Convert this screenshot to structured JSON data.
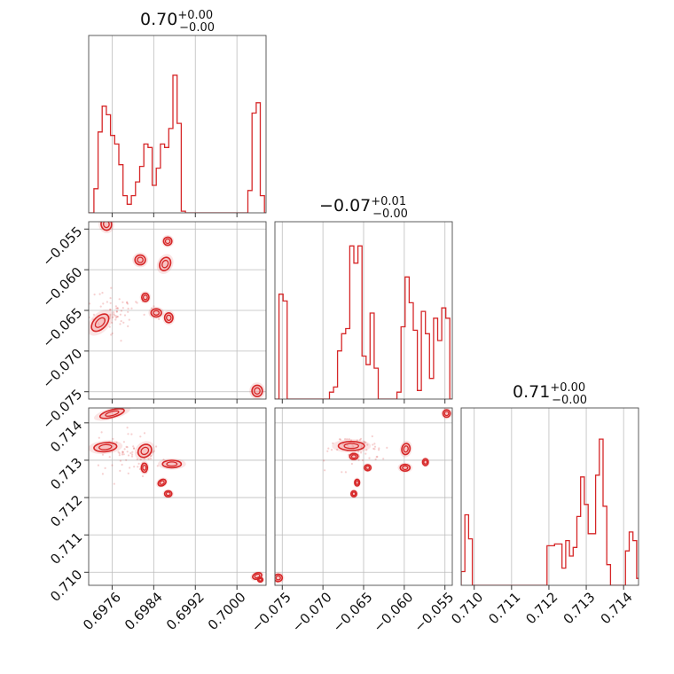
{
  "chart_data": {
    "type": "corner",
    "color": "#d62728",
    "grid": true,
    "parameters": [
      {
        "title_value": "0.70",
        "title_plus": "+0.00",
        "title_minus": "−0.00",
        "range": [
          0.69715,
          0.70056
        ],
        "ticks": [
          0.6976,
          0.6984,
          0.6992,
          0.7
        ],
        "tick_labels": [
          "0.6976",
          "0.6984",
          "0.6992",
          "0.7000"
        ],
        "hist": [
          [
            0.69715,
            0.0
          ],
          [
            0.69725,
            0.14
          ],
          [
            0.69733,
            0.47
          ],
          [
            0.69741,
            0.62
          ],
          [
            0.69749,
            0.57
          ],
          [
            0.69757,
            0.45
          ],
          [
            0.69765,
            0.4
          ],
          [
            0.69773,
            0.28
          ],
          [
            0.69781,
            0.1
          ],
          [
            0.69789,
            0.05
          ],
          [
            0.69797,
            0.1
          ],
          [
            0.69805,
            0.18
          ],
          [
            0.69813,
            0.27
          ],
          [
            0.69821,
            0.4
          ],
          [
            0.69829,
            0.38
          ],
          [
            0.69837,
            0.16
          ],
          [
            0.69845,
            0.26
          ],
          [
            0.69853,
            0.4
          ],
          [
            0.69861,
            0.38
          ],
          [
            0.69869,
            0.49
          ],
          [
            0.69877,
            0.8
          ],
          [
            0.69885,
            0.52
          ],
          [
            0.69893,
            0.01
          ],
          [
            0.69901,
            0.0
          ],
          [
            0.6999,
            0.0
          ],
          [
            0.70021,
            0.13
          ],
          [
            0.70029,
            0.58
          ],
          [
            0.70037,
            0.64
          ],
          [
            0.70045,
            0.1
          ],
          [
            0.70053,
            0.0
          ]
        ]
      },
      {
        "title_value": "−0.07",
        "title_plus": "+0.01",
        "title_minus": "−0.00",
        "range": [
          -0.0759,
          -0.0541
        ],
        "ticks": [
          -0.075,
          -0.07,
          -0.065,
          -0.06,
          -0.055
        ],
        "tick_labels": [
          "−0.075",
          "−0.070",
          "−0.065",
          "−0.060",
          "−0.055"
        ],
        "hist": [
          [
            -0.0759,
            0.0
          ],
          [
            -0.0754,
            0.61
          ],
          [
            -0.0749,
            0.57
          ],
          [
            -0.0744,
            0.0
          ],
          [
            -0.07,
            0.0
          ],
          [
            -0.0692,
            0.04
          ],
          [
            -0.0687,
            0.07
          ],
          [
            -0.0682,
            0.28
          ],
          [
            -0.0677,
            0.38
          ],
          [
            -0.0672,
            0.41
          ],
          [
            -0.0667,
            0.89
          ],
          [
            -0.0662,
            0.79
          ],
          [
            -0.0657,
            0.89
          ],
          [
            -0.0652,
            0.25
          ],
          [
            -0.0647,
            0.2
          ],
          [
            -0.0642,
            0.5
          ],
          [
            -0.0637,
            0.18
          ],
          [
            -0.0632,
            0.0
          ],
          [
            -0.0614,
            0.0
          ],
          [
            -0.0609,
            0.04
          ],
          [
            -0.0604,
            0.42
          ],
          [
            -0.0599,
            0.71
          ],
          [
            -0.0594,
            0.56
          ],
          [
            -0.0589,
            0.4
          ],
          [
            -0.0584,
            0.05
          ],
          [
            -0.0579,
            0.51
          ],
          [
            -0.0574,
            0.38
          ],
          [
            -0.0569,
            0.12
          ],
          [
            -0.0564,
            0.47
          ],
          [
            -0.0559,
            0.34
          ],
          [
            -0.0554,
            0.53
          ],
          [
            -0.0549,
            0.47
          ],
          [
            -0.0544,
            0.0
          ]
        ]
      },
      {
        "title_value": "0.71",
        "title_plus": "+0.00",
        "title_minus": "−0.00",
        "range": [
          0.70965,
          0.7144
        ],
        "ticks": [
          0.71,
          0.711,
          0.712,
          0.713,
          0.714
        ],
        "tick_labels": [
          "0.710",
          "0.711",
          "0.712",
          "0.713",
          "0.714"
        ],
        "hist": [
          [
            0.70965,
            0.08
          ],
          [
            0.70975,
            0.41
          ],
          [
            0.70985,
            0.27
          ],
          [
            0.70995,
            0.0
          ],
          [
            0.71195,
            0.23
          ],
          [
            0.71215,
            0.24
          ],
          [
            0.71235,
            0.1
          ],
          [
            0.71245,
            0.26
          ],
          [
            0.71255,
            0.17
          ],
          [
            0.71265,
            0.22
          ],
          [
            0.71275,
            0.4
          ],
          [
            0.71285,
            0.63
          ],
          [
            0.71295,
            0.47
          ],
          [
            0.71305,
            0.3
          ],
          [
            0.71315,
            0.3
          ],
          [
            0.71325,
            0.64
          ],
          [
            0.71335,
            0.85
          ],
          [
            0.71345,
            0.46
          ],
          [
            0.71355,
            0.12
          ],
          [
            0.71365,
            0.0
          ],
          [
            0.71405,
            0.2
          ],
          [
            0.71415,
            0.31
          ],
          [
            0.71425,
            0.26
          ],
          [
            0.71435,
            0.04
          ]
        ]
      }
    ],
    "pairs": [
      {
        "name": "p1-vs-p0",
        "xi": 0,
        "yi": 1,
        "blobs": [
          [
            0.69749,
            -0.0544,
            0.0001,
            0.00075,
            -10
          ],
          [
            0.69814,
            -0.0588,
            0.0001,
            0.0006,
            0
          ],
          [
            0.69862,
            -0.0593,
            0.0001,
            0.00085,
            25
          ],
          [
            0.69867,
            -0.0565,
            8e-05,
            0.0005,
            5
          ],
          [
            0.69824,
            -0.0634,
            7e-05,
            0.0005,
            0
          ],
          [
            0.69845,
            -0.0653,
            0.0001,
            0.0005,
            0
          ],
          [
            0.69869,
            -0.0659,
            8e-05,
            0.0006,
            0
          ],
          [
            0.69737,
            -0.0665,
            0.00012,
            0.0013,
            45
          ],
          [
            0.70039,
            -0.0749,
            0.0001,
            0.0007,
            0
          ]
        ],
        "scatter": [
          0.69765,
          -0.0652,
          0.0003,
          0.0014
        ]
      },
      {
        "name": "p2-vs-p0",
        "xi": 0,
        "yi": 2,
        "blobs": [
          [
            0.6976,
            0.71425,
            0.00024,
            0.0001,
            -15
          ],
          [
            0.69747,
            0.71335,
            0.00022,
            0.00012,
            -5
          ],
          [
            0.69823,
            0.71325,
            0.00014,
            0.00016,
            -40
          ],
          [
            0.69822,
            0.7128,
            6e-05,
            0.00012,
            0
          ],
          [
            0.69875,
            0.7129,
            0.00018,
            0.0001,
            0
          ],
          [
            0.69856,
            0.7124,
            8e-05,
            8e-05,
            -30
          ],
          [
            0.69868,
            0.7121,
            7e-05,
            8e-05,
            0
          ],
          [
            0.70039,
            0.7099,
            9e-05,
            8e-05,
            -20
          ],
          [
            0.70045,
            0.7098,
            5e-05,
            6e-05,
            0
          ]
        ],
        "scatter": [
          0.698,
          0.7132,
          0.0003,
          0.0003
        ]
      },
      {
        "name": "p2-vs-p1",
        "xi": 1,
        "yi": 2,
        "blobs": [
          [
            -0.0665,
            0.71338,
            0.0016,
            0.00012,
            0
          ],
          [
            -0.0662,
            0.7131,
            0.0005,
            8e-05,
            0
          ],
          [
            -0.0645,
            0.7128,
            0.0004,
            8e-05,
            0
          ],
          [
            -0.0658,
            0.7124,
            0.0003,
            9e-05,
            0
          ],
          [
            -0.0662,
            0.7121,
            0.00035,
            8e-05,
            0
          ],
          [
            -0.0598,
            0.7133,
            0.0005,
            0.00015,
            10
          ],
          [
            -0.0599,
            0.7128,
            0.0006,
            9e-05,
            0
          ],
          [
            -0.0574,
            0.71295,
            0.00035,
            9e-05,
            0
          ],
          [
            -0.0548,
            0.71425,
            0.00045,
            0.0001,
            0
          ],
          [
            -0.0755,
            0.70985,
            0.0005,
            0.0001,
            0
          ]
        ],
        "scatter": [
          -0.066,
          0.7133,
          0.002,
          0.0002
        ]
      }
    ]
  }
}
